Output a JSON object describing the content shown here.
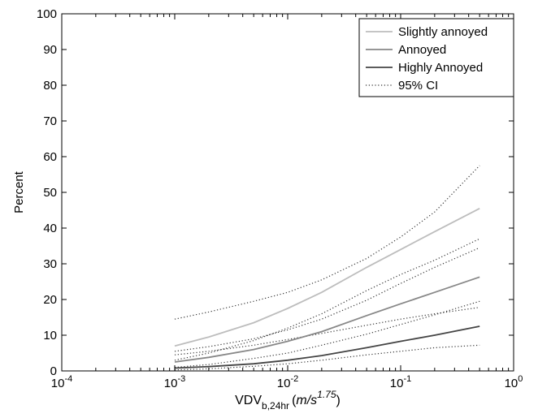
{
  "chart_data": {
    "type": "line",
    "xscale": "log",
    "xlim": [
      0.0001,
      1
    ],
    "ylim": [
      0,
      100
    ],
    "xticks": [
      {
        "value": 0.0001,
        "base": "10",
        "exp": "-4"
      },
      {
        "value": 0.001,
        "base": "10",
        "exp": "-3"
      },
      {
        "value": 0.01,
        "base": "10",
        "exp": "-2"
      },
      {
        "value": 0.1,
        "base": "10",
        "exp": "-1"
      },
      {
        "value": 1,
        "base": "10",
        "exp": "0"
      }
    ],
    "yticks": [
      "0",
      "10",
      "20",
      "30",
      "40",
      "50",
      "60",
      "70",
      "80",
      "90",
      "100"
    ],
    "ylabel": "Percent",
    "xlabel": {
      "main": "VDV",
      "sub": "b,24hr",
      "unit_open": "(",
      "unit": "m/s",
      "unit_exp": "1.75",
      "unit_close": ")"
    },
    "grid": false,
    "legend_position": "top-right",
    "legend": [
      {
        "label": "Slightly annoyed",
        "color": "#bdbdbd",
        "style": "solid"
      },
      {
        "label": "Annoyed",
        "color": "#888888",
        "style": "solid"
      },
      {
        "label": "Highly Annoyed",
        "color": "#444444",
        "style": "solid"
      },
      {
        "label": "95% CI",
        "color": "#333333",
        "style": "dotted"
      }
    ],
    "x": [
      0.001,
      0.002,
      0.005,
      0.01,
      0.02,
      0.05,
      0.1,
      0.2,
      0.5
    ],
    "series": [
      {
        "name": "Slightly annoyed",
        "color": "#bdbdbd",
        "style": "solid",
        "values": [
          7,
          9.5,
          13.5,
          17.5,
          22,
          29,
          34,
          39,
          45.5
        ]
      },
      {
        "name": "Annoyed",
        "color": "#888888",
        "style": "solid",
        "values": [
          2.5,
          3.8,
          6,
          8.3,
          11,
          15.5,
          18.8,
          22,
          26.3
        ]
      },
      {
        "name": "Highly Annoyed",
        "color": "#444444",
        "style": "solid",
        "values": [
          0.8,
          1.2,
          2,
          3,
          4.3,
          6.5,
          8.3,
          10,
          12.5
        ]
      },
      {
        "color": "#333333",
        "style": "dotted",
        "values": [
          14.5,
          16.5,
          19.5,
          22,
          25.5,
          31.5,
          37.5,
          44.5,
          57.5
        ]
      },
      {
        "color": "#333333",
        "style": "dotted",
        "values": [
          3,
          5,
          8.5,
          12,
          16,
          22.5,
          27,
          31,
          37
        ]
      },
      {
        "color": "#333333",
        "style": "dotted",
        "values": [
          5.5,
          6.8,
          9,
          11.5,
          14.5,
          19.8,
          24.5,
          29,
          34.5
        ]
      },
      {
        "color": "#333333",
        "style": "dotted",
        "values": [
          1,
          1.8,
          3.5,
          5,
          7.2,
          10.3,
          13,
          15.7,
          19.5
        ]
      },
      {
        "color": "#333333",
        "style": "dotted",
        "values": [
          4.5,
          5.5,
          7.2,
          8.8,
          10.5,
          12.8,
          14.5,
          16,
          17.8
        ]
      },
      {
        "color": "#333333",
        "style": "dotted",
        "values": [
          0.3,
          0.6,
          1.3,
          2,
          3,
          4.5,
          5.5,
          6.5,
          7.2
        ]
      }
    ]
  }
}
